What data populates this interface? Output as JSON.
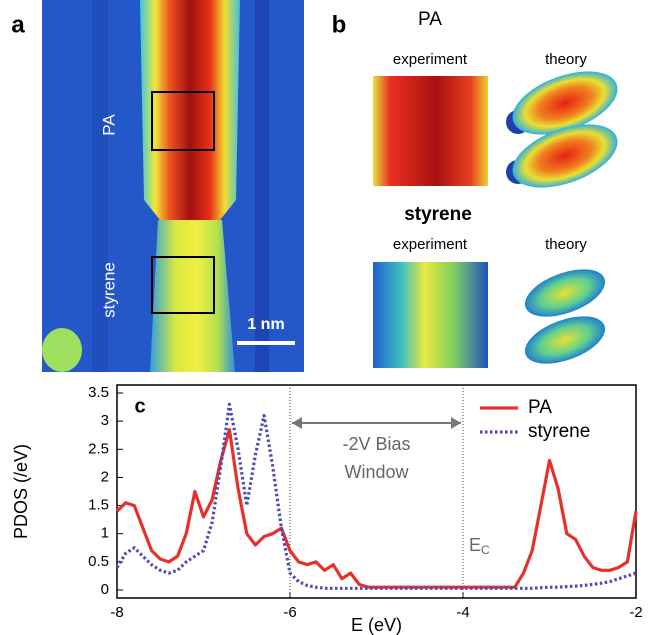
{
  "panel_a": {
    "label": "a",
    "molecule_top": "PA",
    "molecule_bottom": "styrene",
    "scale_bar": "1 nm"
  },
  "panel_b": {
    "label": "b",
    "sections": [
      {
        "title": "PA",
        "columns": [
          "experiment",
          "theory"
        ]
      },
      {
        "title": "styrene",
        "columns": [
          "experiment",
          "theory"
        ]
      }
    ]
  },
  "chart_data": {
    "type": "line",
    "panel_label": "c",
    "xlabel": "E (eV)",
    "ylabel": "PDOS (/eV)",
    "xlim": [
      -8,
      -2
    ],
    "ylim": [
      0,
      3.5
    ],
    "xticks": [
      -8,
      -6,
      -4,
      -2
    ],
    "yticks": [
      0,
      0.5,
      1,
      1.5,
      2,
      2.5,
      3,
      3.5
    ],
    "bias_window": [
      -6,
      -4
    ],
    "bias_label": [
      "-2V Bias",
      "Window"
    ],
    "ec_label": "E",
    "ec_sub": "C",
    "x": [
      -8,
      -7.9,
      -7.8,
      -7.7,
      -7.6,
      -7.5,
      -7.4,
      -7.3,
      -7.2,
      -7.1,
      -7,
      -6.9,
      -6.8,
      -6.7,
      -6.6,
      -6.5,
      -6.4,
      -6.3,
      -6.2,
      -6.1,
      -6,
      -5.9,
      -5.8,
      -5.7,
      -5.6,
      -5.5,
      -5.4,
      -5.3,
      -5.2,
      -5.1,
      -5,
      -4.9,
      -4.8,
      -4.7,
      -4.6,
      -4.5,
      -4.4,
      -4.3,
      -4.2,
      -4.1,
      -4,
      -3.9,
      -3.8,
      -3.7,
      -3.6,
      -3.5,
      -3.4,
      -3.3,
      -3.2,
      -3.1,
      -3,
      -2.9,
      -2.8,
      -2.7,
      -2.6,
      -2.5,
      -2.4,
      -2.3,
      -2.2,
      -2.1,
      -2
    ],
    "series": [
      {
        "name": "PA",
        "color": "#e8302a",
        "style": "solid",
        "values": [
          1.4,
          1.55,
          1.5,
          1.1,
          0.7,
          0.55,
          0.5,
          0.6,
          1.0,
          1.75,
          1.3,
          1.6,
          2.3,
          2.85,
          1.8,
          1.0,
          0.8,
          0.95,
          1.0,
          1.1,
          0.7,
          0.5,
          0.45,
          0.5,
          0.35,
          0.45,
          0.2,
          0.3,
          0.1,
          0.05,
          0.05,
          0.05,
          0.05,
          0.05,
          0.05,
          0.05,
          0.05,
          0.05,
          0.05,
          0.05,
          0.05,
          0.05,
          0.05,
          0.05,
          0.05,
          0.05,
          0.05,
          0.3,
          0.7,
          1.5,
          2.3,
          1.8,
          1.0,
          0.9,
          0.6,
          0.4,
          0.35,
          0.35,
          0.4,
          0.5,
          1.4
        ]
      },
      {
        "name": "styrene",
        "color": "#4a4ab8",
        "style": "dotted",
        "values": [
          0.4,
          0.65,
          0.75,
          0.6,
          0.45,
          0.35,
          0.3,
          0.35,
          0.5,
          0.6,
          0.7,
          1.2,
          2.2,
          3.3,
          2.5,
          1.5,
          2.4,
          3.1,
          2.2,
          1.1,
          0.3,
          0.15,
          0.08,
          0.05,
          0.03,
          0.03,
          0.03,
          0.03,
          0.03,
          0.03,
          0.03,
          0.03,
          0.03,
          0.03,
          0.03,
          0.03,
          0.03,
          0.03,
          0.03,
          0.03,
          0.03,
          0.03,
          0.03,
          0.03,
          0.03,
          0.03,
          0.03,
          0.03,
          0.03,
          0.04,
          0.05,
          0.05,
          0.06,
          0.07,
          0.08,
          0.1,
          0.12,
          0.15,
          0.2,
          0.25,
          0.3
        ]
      }
    ]
  }
}
